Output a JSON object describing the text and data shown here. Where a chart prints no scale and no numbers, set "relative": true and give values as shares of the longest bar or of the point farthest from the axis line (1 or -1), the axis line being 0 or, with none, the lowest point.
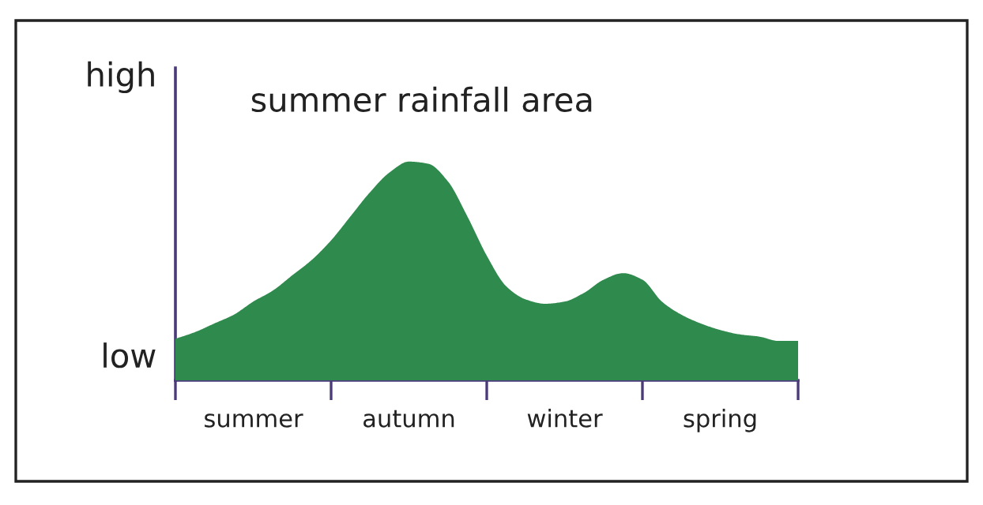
{
  "chart_data": {
    "type": "area",
    "title": "summer rainfall area",
    "relative": true,
    "categories": [
      null,
      null,
      null,
      null,
      "summer",
      null,
      null,
      null,
      null,
      null,
      null,
      null,
      "autumn",
      null,
      null,
      null,
      null,
      null,
      null,
      null,
      "winter",
      null,
      null,
      null,
      null,
      null,
      null,
      null,
      "spring",
      null,
      null,
      null,
      null
    ],
    "series": [
      {
        "color": "#2f8a4d",
        "values": [
          0.19,
          0.22,
          0.26,
          0.3,
          0.36,
          0.41,
          0.48,
          0.55,
          0.64,
          0.75,
          0.86,
          0.95,
          1,
          0.99,
          0.91,
          0.75,
          0.57,
          0.43,
          0.37,
          0.35,
          0.36,
          0.4,
          0.46,
          0.49,
          0.46,
          0.36,
          0.3,
          0.26,
          0.23,
          0.21,
          0.2,
          0.18,
          0.18
        ]
      }
    ],
    "annotations": [
      "high",
      "low"
    ],
    "grid": false,
    "legend": false
  }
}
